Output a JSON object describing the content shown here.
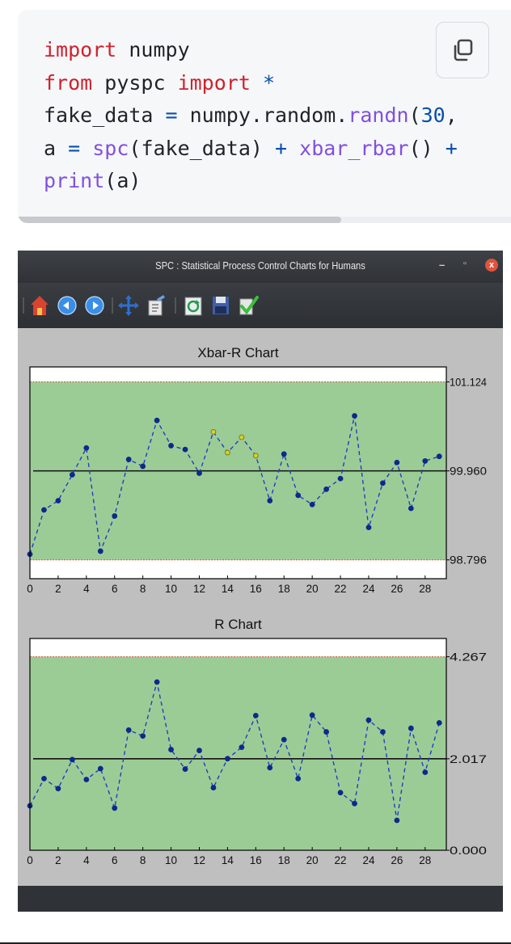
{
  "code": {
    "line1": {
      "kw": "import",
      "rest": " numpy"
    },
    "line2": {
      "kw1": "from",
      "mid": " pyspc ",
      "kw2": "import",
      "star": " *"
    },
    "line3": {
      "a": "fake_data ",
      "eq": "=",
      "b": " numpy.random.",
      "fn": "randn",
      "open": "(",
      "num": "30",
      "tail": ","
    },
    "line4": {
      "a": "a ",
      "eq": "=",
      "sp": " ",
      "fn1": "spc",
      "b": "(fake_data) ",
      "plus1": "+",
      "sp2": " ",
      "fn2": "xbar_rbar",
      "c": "() ",
      "plus2": "+"
    },
    "line5": {
      "fn": "print",
      "rest": "(a)"
    },
    "copy_icon": "copy-icon"
  },
  "window": {
    "title": "SPC : Statistical Process Control Charts for Humans",
    "minimize": "–",
    "restore": "▫",
    "close": "x",
    "toolbar_icons": [
      "home-icon",
      "back-icon",
      "forward-icon",
      "pan-icon",
      "edit-icon",
      "refresh-icon",
      "save-icon",
      "check-icon"
    ]
  },
  "colors": {
    "zone": "#9ccc96",
    "series": "#1f3fbf",
    "marker": "#0b2a8a",
    "violation": "#d6cf2a",
    "limit": "#c8563a",
    "center": "#111111"
  },
  "chart_data": [
    {
      "type": "line",
      "title": "Xbar-R Chart",
      "x": [
        0,
        1,
        2,
        3,
        4,
        5,
        6,
        7,
        8,
        9,
        10,
        11,
        12,
        13,
        14,
        15,
        16,
        17,
        18,
        19,
        20,
        21,
        22,
        23,
        24,
        25,
        26,
        27,
        28,
        29
      ],
      "values": [
        98.87,
        99.45,
        99.57,
        99.91,
        100.26,
        98.91,
        99.37,
        100.11,
        100.02,
        100.62,
        100.29,
        100.24,
        99.93,
        100.47,
        100.2,
        100.4,
        100.16,
        99.57,
        100.18,
        99.64,
        99.52,
        99.72,
        99.86,
        100.68,
        99.22,
        99.8,
        100.07,
        99.47,
        100.09,
        100.15
      ],
      "violation_points": [
        13,
        14,
        15,
        16
      ],
      "ucl": 101.124,
      "cl": 99.96,
      "lcl": 98.796,
      "ucl_label": "101.124",
      "cl_label": "99.960",
      "lcl_label": "98.796",
      "xlim": [
        0,
        29.5
      ],
      "ylim": [
        98.55,
        101.32
      ],
      "xticks": [
        0,
        2,
        4,
        6,
        8,
        10,
        12,
        14,
        16,
        18,
        20,
        22,
        24,
        26,
        28
      ]
    },
    {
      "type": "line",
      "title": "R Chart",
      "x": [
        0,
        1,
        2,
        3,
        4,
        5,
        6,
        7,
        8,
        9,
        10,
        11,
        12,
        13,
        14,
        15,
        16,
        17,
        18,
        19,
        20,
        21,
        22,
        23,
        24,
        25,
        26,
        27,
        28,
        29
      ],
      "values": [
        0.98,
        1.58,
        1.36,
        2.0,
        1.56,
        1.8,
        0.93,
        2.65,
        2.52,
        3.71,
        2.22,
        1.79,
        2.2,
        1.38,
        2.02,
        2.27,
        2.97,
        1.82,
        2.44,
        1.58,
        2.98,
        2.61,
        1.27,
        1.03,
        2.87,
        2.61,
        0.66,
        2.69,
        1.72,
        2.81
      ],
      "ucl": 4.267,
      "cl": 2.017,
      "lcl": 0.0,
      "ucl_label": "4.267",
      "cl_label": "2.017",
      "lcl_label": "0.000",
      "xlim": [
        0,
        29.5
      ],
      "ylim": [
        0,
        4.67
      ],
      "xticks": [
        0,
        2,
        4,
        6,
        8,
        10,
        12,
        14,
        16,
        18,
        20,
        22,
        24,
        26,
        28
      ]
    }
  ]
}
